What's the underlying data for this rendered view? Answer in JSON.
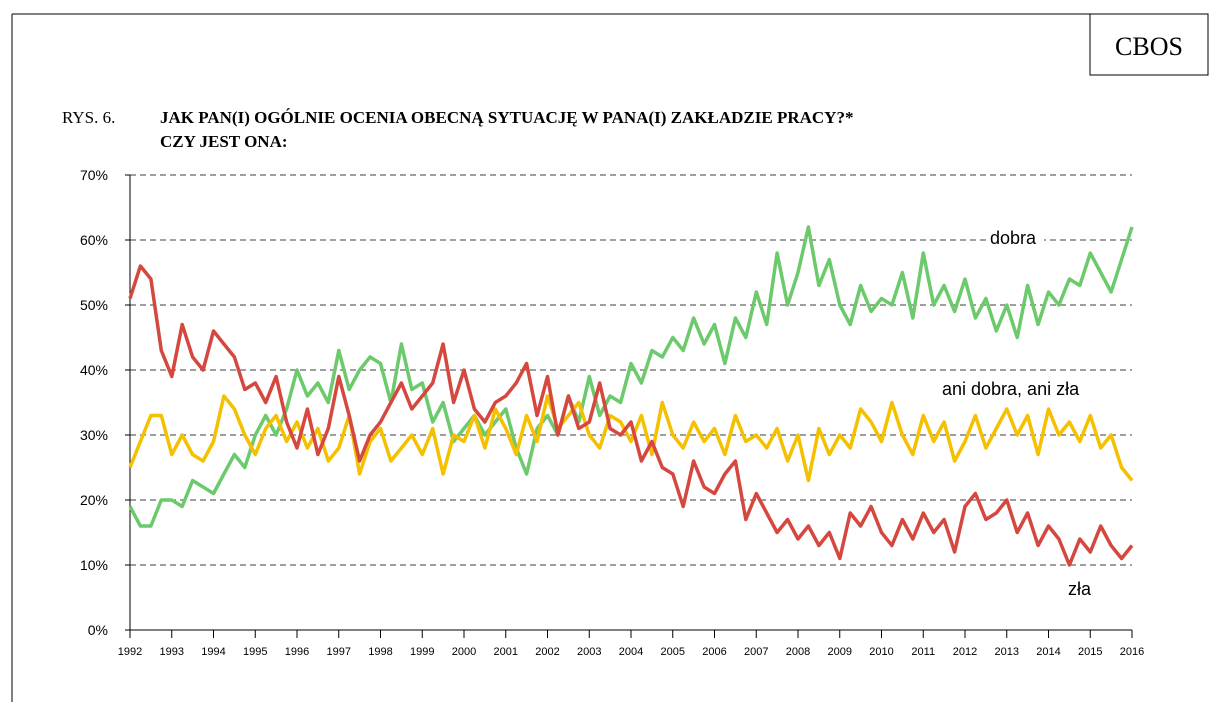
{
  "chart_data": {
    "type": "line",
    "source": "CBOS",
    "figure_label": "RYS. 6.",
    "title": [
      "JAK PAN(I) OGÓLNIE OCENIA OBECNĄ SYTUACJĘ W PANA(I) ZAKŁADZIE PRACY?*",
      "CZY JEST ONA:"
    ],
    "x": [
      1992,
      1992.25,
      1992.5,
      1992.75,
      1993,
      1993.25,
      1993.5,
      1993.75,
      1994,
      1994.25,
      1994.5,
      1994.75,
      1995,
      1995.25,
      1995.5,
      1995.75,
      1996,
      1996.25,
      1996.5,
      1996.75,
      1997,
      1997.25,
      1997.5,
      1997.75,
      1998,
      1998.25,
      1998.5,
      1998.75,
      1999,
      1999.25,
      1999.5,
      1999.75,
      2000,
      2000.25,
      2000.5,
      2000.75,
      2001,
      2001.25,
      2001.5,
      2001.75,
      2002,
      2002.25,
      2002.5,
      2002.75,
      2003,
      2003.25,
      2003.5,
      2003.75,
      2004,
      2004.25,
      2004.5,
      2004.75,
      2005,
      2005.25,
      2005.5,
      2005.75,
      2006,
      2006.25,
      2006.5,
      2006.75,
      2007,
      2007.25,
      2007.5,
      2007.75,
      2008,
      2008.25,
      2008.5,
      2008.75,
      2009,
      2009.25,
      2009.5,
      2009.75,
      2010,
      2010.25,
      2010.5,
      2010.75,
      2011,
      2011.25,
      2011.5,
      2011.75,
      2012,
      2012.25,
      2012.5,
      2012.75,
      2013,
      2013.25,
      2013.5,
      2013.75,
      2014,
      2014.25,
      2014.5,
      2014.75,
      2015,
      2015.25,
      2015.5,
      2015.75,
      2016
    ],
    "series": [
      {
        "name": "dobra",
        "color": "#6cc96c",
        "values": [
          19,
          16,
          16,
          20,
          20,
          19,
          23,
          22,
          21,
          24,
          27,
          25,
          30,
          33,
          30,
          34,
          40,
          36,
          38,
          35,
          43,
          37,
          40,
          42,
          41,
          35,
          44,
          37,
          38,
          32,
          35,
          29,
          31,
          33,
          30,
          32,
          34,
          28,
          24,
          31,
          33,
          30,
          36,
          32,
          39,
          33,
          36,
          35,
          41,
          38,
          43,
          42,
          45,
          43,
          48,
          44,
          47,
          41,
          48,
          45,
          52,
          47,
          58,
          50,
          55,
          62,
          53,
          57,
          50,
          47,
          53,
          49,
          51,
          50,
          55,
          48,
          58,
          50,
          53,
          49,
          54,
          48,
          51,
          46,
          50,
          45,
          53,
          47,
          52,
          50,
          54,
          53,
          58,
          55,
          52,
          57,
          62
        ]
      },
      {
        "name": "ani dobra, ani zła",
        "color": "#f5c000",
        "values": [
          25,
          29,
          33,
          33,
          27,
          30,
          27,
          26,
          29,
          36,
          34,
          30,
          27,
          31,
          33,
          29,
          32,
          28,
          31,
          26,
          28,
          33,
          24,
          29,
          31,
          26,
          28,
          30,
          27,
          31,
          24,
          30,
          29,
          33,
          28,
          34,
          31,
          27,
          33,
          29,
          36,
          31,
          33,
          35,
          30,
          28,
          33,
          32,
          29,
          33,
          27,
          35,
          30,
          28,
          32,
          29,
          31,
          27,
          33,
          29,
          30,
          28,
          31,
          26,
          30,
          23,
          31,
          27,
          30,
          28,
          34,
          32,
          29,
          35,
          30,
          27,
          33,
          29,
          32,
          26,
          29,
          33,
          28,
          31,
          34,
          30,
          33,
          27,
          34,
          30,
          32,
          29,
          33,
          28,
          30,
          25,
          23
        ]
      },
      {
        "name": "zła",
        "color": "#d4483f",
        "values": [
          51,
          56,
          54,
          43,
          39,
          47,
          42,
          40,
          46,
          44,
          42,
          37,
          38,
          35,
          39,
          32,
          28,
          34,
          27,
          31,
          39,
          33,
          26,
          30,
          32,
          35,
          38,
          34,
          36,
          38,
          44,
          35,
          40,
          34,
          32,
          35,
          36,
          38,
          41,
          33,
          39,
          30,
          36,
          31,
          32,
          38,
          31,
          30,
          32,
          26,
          29,
          25,
          24,
          19,
          26,
          22,
          21,
          24,
          26,
          17,
          21,
          18,
          15,
          17,
          14,
          16,
          13,
          15,
          11,
          18,
          16,
          19,
          15,
          13,
          17,
          14,
          18,
          15,
          17,
          12,
          19,
          21,
          17,
          18,
          20,
          15,
          18,
          13,
          16,
          14,
          10,
          14,
          12,
          16,
          13,
          11,
          13
        ]
      }
    ],
    "xlim": [
      1992,
      2016
    ],
    "xticks": [
      1992,
      1993,
      1994,
      1995,
      1996,
      1997,
      1998,
      1999,
      2000,
      2001,
      2002,
      2003,
      2004,
      2005,
      2006,
      2007,
      2008,
      2009,
      2010,
      2011,
      2012,
      2013,
      2014,
      2015,
      2016
    ],
    "ylim": [
      0,
      70
    ],
    "yticks": [
      {
        "value": 0,
        "label": "0%"
      },
      {
        "value": 10,
        "label": "10%"
      },
      {
        "value": 20,
        "label": "20%"
      },
      {
        "value": 30,
        "label": "30%"
      },
      {
        "value": 40,
        "label": "40%"
      },
      {
        "value": 50,
        "label": "50%"
      },
      {
        "value": 60,
        "label": "60%"
      },
      {
        "value": 70,
        "label": "70%"
      }
    ],
    "grid": true
  }
}
